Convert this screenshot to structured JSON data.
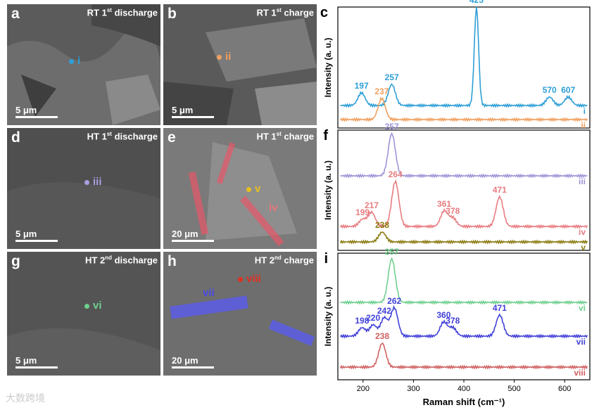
{
  "sem_panels": [
    {
      "id": "a",
      "letter": "a",
      "title": "RT 1",
      "sup": "st",
      "title_rest": " discharge",
      "scale": "5 μm",
      "markers": [
        {
          "label": "i",
          "color": "#2e9fd6"
        }
      ]
    },
    {
      "id": "b",
      "letter": "b",
      "title": "RT 1",
      "sup": "st",
      "title_rest": " charge",
      "scale": "5 μm",
      "markers": [
        {
          "label": "ii",
          "color": "#f0a060"
        }
      ]
    },
    {
      "id": "d",
      "letter": "d",
      "title": "HT 1",
      "sup": "st",
      "title_rest": " discharge",
      "scale": "5 μm",
      "markers": [
        {
          "label": "iii",
          "color": "#a9a0e0"
        }
      ]
    },
    {
      "id": "e",
      "letter": "e",
      "title": "HT 1",
      "sup": "st",
      "title_rest": " charge",
      "scale": "20 μm",
      "markers": [
        {
          "label": "v",
          "color": "#e8c020"
        },
        {
          "label": "iv",
          "color": "#e87878"
        }
      ]
    },
    {
      "id": "g",
      "letter": "g",
      "title": "HT 2",
      "sup": "nd",
      "title_rest": " discharge",
      "scale": "5 μm",
      "markers": [
        {
          "label": "vi",
          "color": "#6fd08e"
        }
      ]
    },
    {
      "id": "h",
      "letter": "h",
      "title": "HT 2",
      "sup": "nd",
      "title_rest": " charge",
      "scale": "20 μm",
      "markers": [
        {
          "label": "vii",
          "color": "#4a4ae8"
        },
        {
          "label": "viii",
          "color": "#e03020"
        }
      ]
    }
  ],
  "chart_data": [
    {
      "type": "line",
      "panel": "c",
      "ylabel": "Intensity (a. u.)",
      "series": [
        {
          "name": "i",
          "color": "#2e9fd6",
          "peaks": [
            197,
            257,
            425,
            570,
            607
          ]
        },
        {
          "name": "ii",
          "color": "#f0a060",
          "peaks": [
            237
          ]
        }
      ]
    },
    {
      "type": "line",
      "panel": "f",
      "ylabel": "Intensity (a. u.)",
      "series": [
        {
          "name": "iii",
          "color": "#9d94d8",
          "peaks": [
            257
          ]
        },
        {
          "name": "iv",
          "color": "#e87c80",
          "peaks": [
            199,
            217,
            264,
            361,
            378,
            471
          ]
        },
        {
          "name": "v",
          "color": "#8a7a10",
          "peaks": [
            238
          ]
        }
      ]
    },
    {
      "type": "line",
      "panel": "i",
      "ylabel": "Intensity (a. u.)",
      "xlabel": "Raman shift (cm⁻¹)",
      "x_ticks": [
        200,
        300,
        400,
        500,
        600
      ],
      "xlim": [
        150,
        650
      ],
      "series": [
        {
          "name": "vi",
          "color": "#6fd08e",
          "peaks": [
            257
          ]
        },
        {
          "name": "vii",
          "color": "#4040d8",
          "peaks": [
            198,
            220,
            242,
            262,
            360,
            378,
            471
          ]
        },
        {
          "name": "viii",
          "color": "#d06060",
          "peaks": [
            238
          ]
        }
      ]
    }
  ],
  "watermark": "大数跨境"
}
